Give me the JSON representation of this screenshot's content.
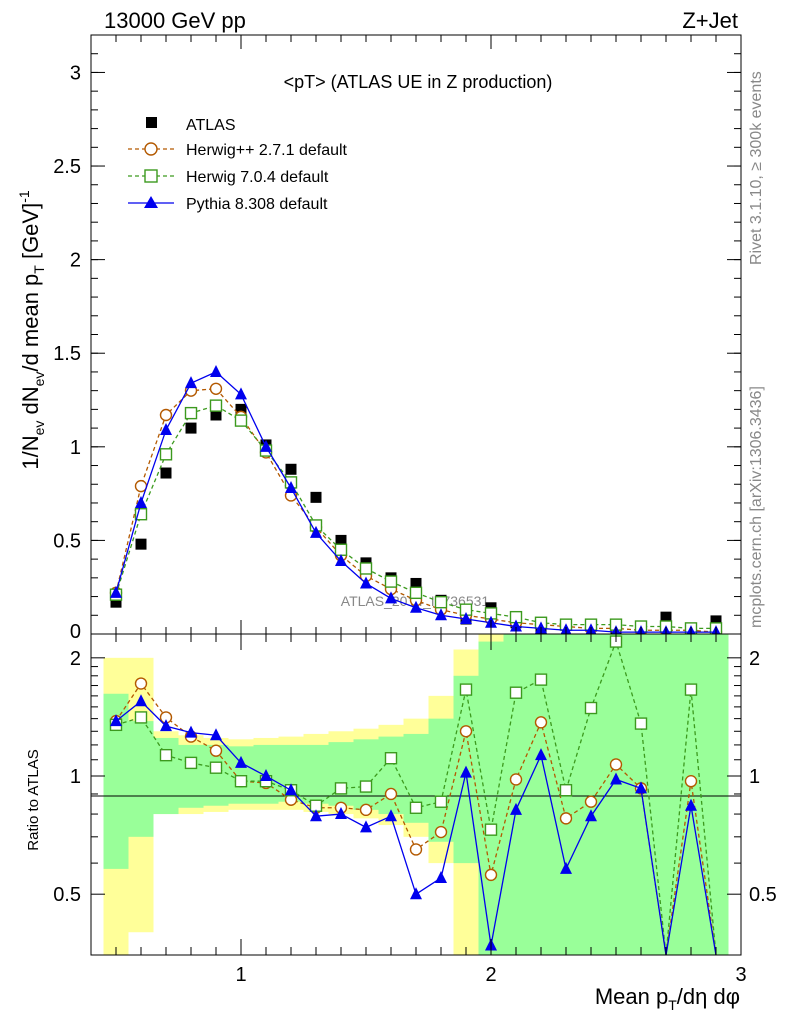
{
  "header": {
    "energy": "13000 GeV pp",
    "process": "Z+Jet"
  },
  "side": {
    "rivet": "Rivet 3.1.10, ≥ 300k events",
    "source": "mcplots.cern.ch [arXiv:1306.3436]"
  },
  "watermark": "ATLAS_2014_I1736531",
  "colors": {
    "atlas": "#000000",
    "herwigpp": "#b35900",
    "herwig7": "#3c9a1e",
    "pythia": "#0000ee",
    "band_inner": "#99ff99",
    "band_outer": "#ffff99"
  },
  "chart_data": [
    {
      "type": "scatter",
      "title": "<pT> (ATLAS UE in Z production)",
      "ylabel": "1/N_ev dN_ev/d mean p_T [GeV]^-1",
      "ylim": [
        0,
        3.2
      ],
      "xlim": [
        0.4,
        3.0
      ],
      "yticks": [
        0.5,
        1,
        1.5,
        2,
        2.5,
        3
      ],
      "yticklabels": [
        "0.5",
        "1",
        "1.5",
        "2",
        "2.5",
        "3"
      ],
      "grid": false,
      "legend_position": "top-left",
      "x": [
        0.5,
        0.6,
        0.7,
        0.8,
        0.9,
        1.0,
        1.1,
        1.2,
        1.3,
        1.4,
        1.5,
        1.6,
        1.7,
        1.8,
        1.9,
        2.0,
        2.1,
        2.2,
        2.3,
        2.4,
        2.5,
        2.6,
        2.7,
        2.8,
        2.9
      ],
      "series": [
        {
          "name": "ATLAS",
          "marker": "square-filled",
          "values": [
            0.17,
            0.48,
            0.86,
            1.1,
            1.17,
            1.2,
            1.01,
            0.88,
            0.73,
            0.5,
            0.38,
            0.3,
            0.27,
            0.18,
            0.08,
            0.14,
            0.06,
            0.03,
            0.05,
            0.04,
            0.03,
            0.02,
            0.09,
            0.02,
            0.07
          ]
        },
        {
          "name": "Herwig++ 2.7.1 default",
          "marker": "circle-open",
          "dashed": true,
          "values": [
            0.22,
            0.79,
            1.17,
            1.3,
            1.31,
            1.16,
            0.97,
            0.74,
            0.57,
            0.42,
            0.31,
            0.24,
            0.18,
            0.13,
            0.1,
            0.08,
            0.06,
            0.05,
            0.04,
            0.03,
            0.03,
            0.02,
            0.02,
            0.02,
            0.01
          ]
        },
        {
          "name": "Herwig 7.0.4 default",
          "marker": "square-open",
          "dashed": true,
          "values": [
            0.21,
            0.64,
            0.96,
            1.18,
            1.22,
            1.14,
            0.98,
            0.81,
            0.58,
            0.45,
            0.35,
            0.28,
            0.22,
            0.17,
            0.13,
            0.11,
            0.09,
            0.06,
            0.05,
            0.05,
            0.05,
            0.04,
            0.04,
            0.03,
            0.03
          ]
        },
        {
          "name": "Pythia 8.308 default",
          "marker": "triangle-filled",
          "values": [
            0.22,
            0.7,
            1.09,
            1.34,
            1.4,
            1.28,
            1.0,
            0.78,
            0.54,
            0.39,
            0.27,
            0.19,
            0.14,
            0.1,
            0.08,
            0.06,
            0.04,
            0.03,
            0.02,
            0.02,
            0.01,
            0.01,
            0.01,
            0.01,
            0.01
          ]
        }
      ]
    },
    {
      "type": "line",
      "ylabel": "Ratio to ATLAS",
      "xlabel": "Mean p_T/dη dφ",
      "ylim": [
        0.35,
        2.3
      ],
      "xlim": [
        0.4,
        3.0
      ],
      "yticks": [
        0.5,
        1,
        2
      ],
      "yticklabels": [
        "0.5",
        "1",
        "2"
      ],
      "xticks": [
        1,
        2,
        3
      ],
      "xticklabels": [
        "1",
        "2",
        "3"
      ],
      "x": [
        0.5,
        0.6,
        0.7,
        0.8,
        0.9,
        1.0,
        1.1,
        1.2,
        1.3,
        1.4,
        1.5,
        1.6,
        1.7,
        1.8,
        1.9,
        2.0,
        2.1,
        2.2,
        2.3,
        2.4,
        2.5,
        2.6,
        2.7,
        2.8,
        2.9
      ],
      "bands": {
        "inner": [
          [
            0.58,
            1.62
          ],
          [
            0.7,
            1.38
          ],
          [
            0.8,
            1.25
          ],
          [
            0.83,
            1.2
          ],
          [
            0.84,
            1.2
          ],
          [
            0.85,
            1.19
          ],
          [
            0.85,
            1.2
          ],
          [
            0.86,
            1.2
          ],
          [
            0.85,
            1.2
          ],
          [
            0.84,
            1.22
          ],
          [
            0.82,
            1.24
          ],
          [
            0.8,
            1.26
          ],
          [
            0.76,
            1.28
          ],
          [
            0.68,
            1.4
          ],
          [
            0.6,
            1.8
          ],
          [
            0.3,
            2.2
          ],
          [
            0.3,
            2.3
          ],
          [
            0.3,
            2.3
          ],
          [
            0.3,
            2.3
          ],
          [
            0.3,
            2.3
          ],
          [
            0.3,
            2.3
          ],
          [
            0.3,
            2.3
          ],
          [
            0.3,
            2.3
          ],
          [
            0.3,
            2.3
          ],
          [
            0.3,
            2.3
          ]
        ],
        "outer": [
          [
            0.3,
            2.0
          ],
          [
            0.4,
            2.0
          ],
          [
            0.8,
            1.3
          ],
          [
            0.8,
            1.27
          ],
          [
            0.81,
            1.25
          ],
          [
            0.82,
            1.24
          ],
          [
            0.82,
            1.25
          ],
          [
            0.82,
            1.26
          ],
          [
            0.81,
            1.28
          ],
          [
            0.8,
            1.3
          ],
          [
            0.78,
            1.32
          ],
          [
            0.75,
            1.35
          ],
          [
            0.7,
            1.4
          ],
          [
            0.6,
            1.6
          ],
          [
            0.3,
            2.1
          ],
          [
            0.3,
            2.3
          ],
          [
            0.3,
            2.3
          ],
          [
            0.3,
            2.3
          ],
          [
            0.3,
            2.3
          ],
          [
            0.3,
            2.3
          ],
          [
            0.3,
            2.3
          ],
          [
            0.3,
            2.3
          ],
          [
            0.3,
            2.3
          ],
          [
            0.3,
            2.3
          ],
          [
            0.3,
            2.3
          ]
        ]
      },
      "series": [
        {
          "name": "Herwig++ 2.7.1 default",
          "values": [
            1.38,
            1.72,
            1.41,
            1.26,
            1.16,
            0.97,
            0.96,
            0.87,
            0.83,
            0.83,
            0.82,
            0.9,
            0.65,
            0.72,
            1.3,
            0.56,
            0.98,
            1.37,
            0.78,
            0.86,
            1.07,
            0.93,
            0.2,
            0.97,
            0.2
          ]
        },
        {
          "name": "Herwig 7.0.4 default",
          "values": [
            1.35,
            1.41,
            1.13,
            1.08,
            1.05,
            0.97,
            0.97,
            0.92,
            0.84,
            0.93,
            0.94,
            1.11,
            0.83,
            0.86,
            1.66,
            0.73,
            1.63,
            1.76,
            0.92,
            1.49,
            2.2,
            1.36,
            0.3,
            1.66,
            0.3
          ]
        },
        {
          "name": "Pythia 8.308 default",
          "values": [
            1.38,
            1.55,
            1.34,
            1.29,
            1.27,
            1.08,
            1.0,
            0.92,
            0.79,
            0.8,
            0.74,
            0.79,
            0.5,
            0.55,
            1.02,
            0.37,
            0.82,
            1.13,
            0.58,
            0.79,
            0.98,
            0.93,
            0.2,
            0.84,
            0.2
          ]
        }
      ]
    }
  ]
}
